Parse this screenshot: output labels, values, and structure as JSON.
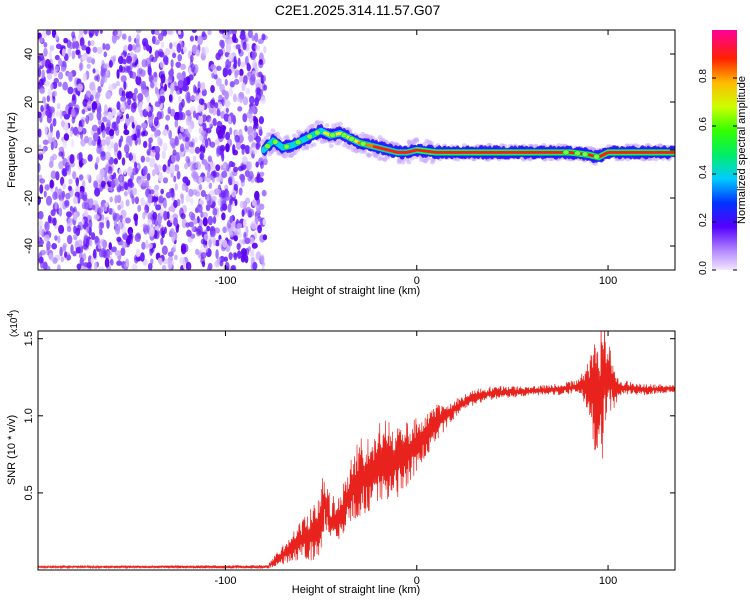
{
  "title": "C2E1.2025.314.11.57.G07",
  "chart_data": [
    {
      "type": "heatmap",
      "title": "C2E1.2025.314.11.57.G07",
      "xlabel": "Height of straight line (km)",
      "ylabel": "Frequency (Hz)",
      "xlim": [
        -198,
        135
      ],
      "ylim": [
        -50,
        50
      ],
      "xticks": [
        -100,
        0,
        100
      ],
      "yticks": [
        -40,
        -20,
        0,
        20,
        40
      ],
      "noise_region": [
        -198,
        -80
      ],
      "frequency_track": {
        "x": [
          -80,
          -75,
          -70,
          -65,
          -60,
          -55,
          -50,
          -45,
          -40,
          -35,
          -30,
          -25,
          -20,
          -15,
          -10,
          -5,
          0,
          10,
          20,
          40,
          60,
          80,
          90,
          95,
          100,
          110,
          135
        ],
        "y": [
          0,
          4,
          1,
          2,
          4,
          6,
          8,
          6,
          7,
          5,
          3,
          2,
          1,
          0,
          -1,
          -1,
          0,
          -1,
          -1,
          -1,
          -1,
          -1,
          -2,
          -3,
          -1,
          -1,
          -1
        ]
      },
      "colorbar": {
        "label": "Normalized spectral amplitude",
        "range": [
          0,
          1
        ],
        "ticks": [
          "0.0",
          "0.2",
          "0.4",
          "0.6",
          "0.8"
        ]
      }
    },
    {
      "type": "line",
      "xlabel": "Height of straight line (km)",
      "ylabel": "SNR (10 * v/v)",
      "scale_label": "(x10",
      "scale_exp": "4",
      "scale_close": ")",
      "xlim": [
        -198,
        135
      ],
      "ylim": [
        0,
        1.55
      ],
      "xticks": [
        -100,
        0,
        100
      ],
      "yticks": [
        "0.5",
        "1.0",
        "1.5"
      ],
      "series": [
        {
          "name": "SNR",
          "color": "#e8221c",
          "x": [
            -198,
            -120,
            -78,
            -70,
            -60,
            -52,
            -48,
            -45,
            -40,
            -35,
            -30,
            -25,
            -20,
            -15,
            -10,
            -5,
            0,
            10,
            20,
            30,
            40,
            60,
            80,
            88,
            92,
            95,
            97,
            100,
            105,
            110,
            120,
            135
          ],
          "y": [
            0.02,
            0.02,
            0.02,
            0.1,
            0.2,
            0.25,
            0.45,
            0.3,
            0.35,
            0.5,
            0.6,
            0.6,
            0.7,
            0.72,
            0.7,
            0.75,
            0.82,
            0.95,
            1.05,
            1.12,
            1.15,
            1.16,
            1.18,
            1.2,
            1.15,
            1.05,
            1.2,
            1.25,
            1.18,
            1.18,
            1.17,
            1.18
          ]
        }
      ],
      "noise_amplitude": [
        {
          "x": -198,
          "a": 0.005
        },
        {
          "x": -78,
          "a": 0.01
        },
        {
          "x": -65,
          "a": 0.08
        },
        {
          "x": -50,
          "a": 0.18
        },
        {
          "x": -40,
          "a": 0.12
        },
        {
          "x": -30,
          "a": 0.22
        },
        {
          "x": -15,
          "a": 0.22
        },
        {
          "x": 0,
          "a": 0.15
        },
        {
          "x": 20,
          "a": 0.05
        },
        {
          "x": 60,
          "a": 0.025
        },
        {
          "x": 85,
          "a": 0.04
        },
        {
          "x": 90,
          "a": 0.15
        },
        {
          "x": 96,
          "a": 0.45
        },
        {
          "x": 101,
          "a": 0.2
        },
        {
          "x": 106,
          "a": 0.04
        },
        {
          "x": 135,
          "a": 0.02
        }
      ]
    }
  ]
}
